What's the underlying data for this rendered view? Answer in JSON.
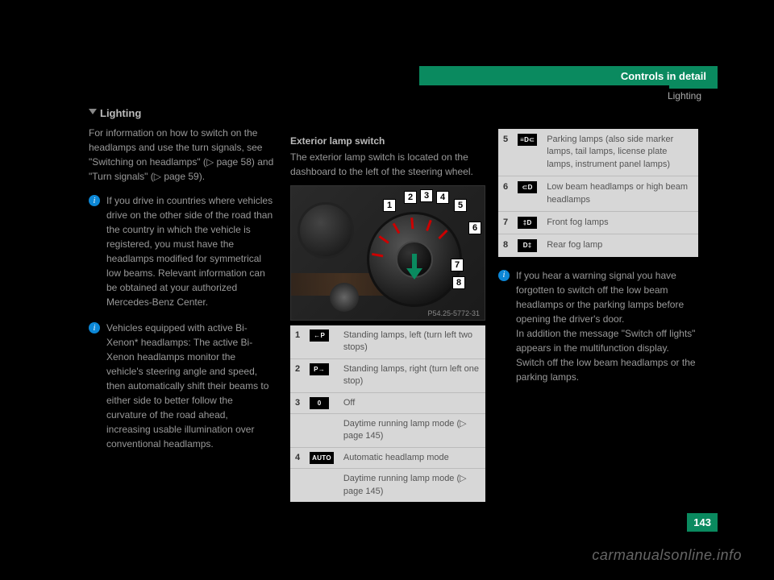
{
  "header": {
    "title": "Controls in detail",
    "subtitle": "Lighting"
  },
  "section_title": "Lighting",
  "left": {
    "intro1": "For information on how to switch on the headlamps and use the turn signals, see \"Switching on headlamps\" (",
    "intro1_page": "page 58",
    "intro1_end": ") and \"Turn signals\" (",
    "intro1_page2": "page 59",
    "intro1_close": ").",
    "note1": "If you drive in countries where vehicles drive on the other side of the road than the country in which the vehicle is registered, you must have the headlamps modified for symmetrical low beams. Relevant information can be obtained at your authorized Mercedes-Benz Center.",
    "note2": "Vehicles equipped with active Bi-Xenon* headlamps: The active Bi-Xenon headlamps monitor the vehicle's steering angle and speed, then automatically shift their beams to either side to better follow the curvature of the road ahead, increasing usable illumination over conventional headlamps.",
    "subhead": "Exterior lamp switch",
    "subhead_text": "The exterior lamp switch is located on the dashboard to the left of the steering wheel."
  },
  "diagram": {
    "labels": [
      "1",
      "2",
      "3",
      "4",
      "5",
      "6",
      "7",
      "8"
    ],
    "pcode": "P54.25-5772-31"
  },
  "legend_center": [
    {
      "n": "1",
      "sym": "←P",
      "text": "Standing lamps, left (turn left two stops)"
    },
    {
      "n": "2",
      "sym": "P→",
      "text": "Standing lamps, right (turn left one stop)"
    },
    {
      "n": "3",
      "sym": "0",
      "text": "Off"
    },
    {
      "n": "",
      "sym": "",
      "text": "Daytime running lamp mode (▷ page 145)"
    },
    {
      "n": "4",
      "sym": "AUTO",
      "text": "Automatic headlamp mode"
    },
    {
      "n": "",
      "sym": "",
      "text": "Daytime running lamp mode (▷ page 145)"
    }
  ],
  "legend_right": [
    {
      "n": "5",
      "sym": "≡D⊂",
      "text": "Parking lamps (also side marker lamps, tail lamps, license plate lamps, instrument panel lamps)"
    },
    {
      "n": "6",
      "sym": "⊂D",
      "text": "Low beam headlamps or high beam headlamps"
    },
    {
      "n": "7",
      "sym": "‡D",
      "text": "Front fog lamps"
    },
    {
      "n": "8",
      "sym": "D‡",
      "text": "Rear fog lamp"
    }
  ],
  "right_note": "If you hear a warning signal you have forgotten to switch off the low beam headlamps or the parking lamps before opening the driver's door.\nIn addition the message \"Switch off lights\" appears in the multifunction display.\nSwitch off the low beam headlamps or the parking lamps.",
  "page_number": "143",
  "watermark": "carmanualsonline.info",
  "tick_angles": [
    -80,
    -55,
    -30,
    -5,
    20,
    45
  ]
}
